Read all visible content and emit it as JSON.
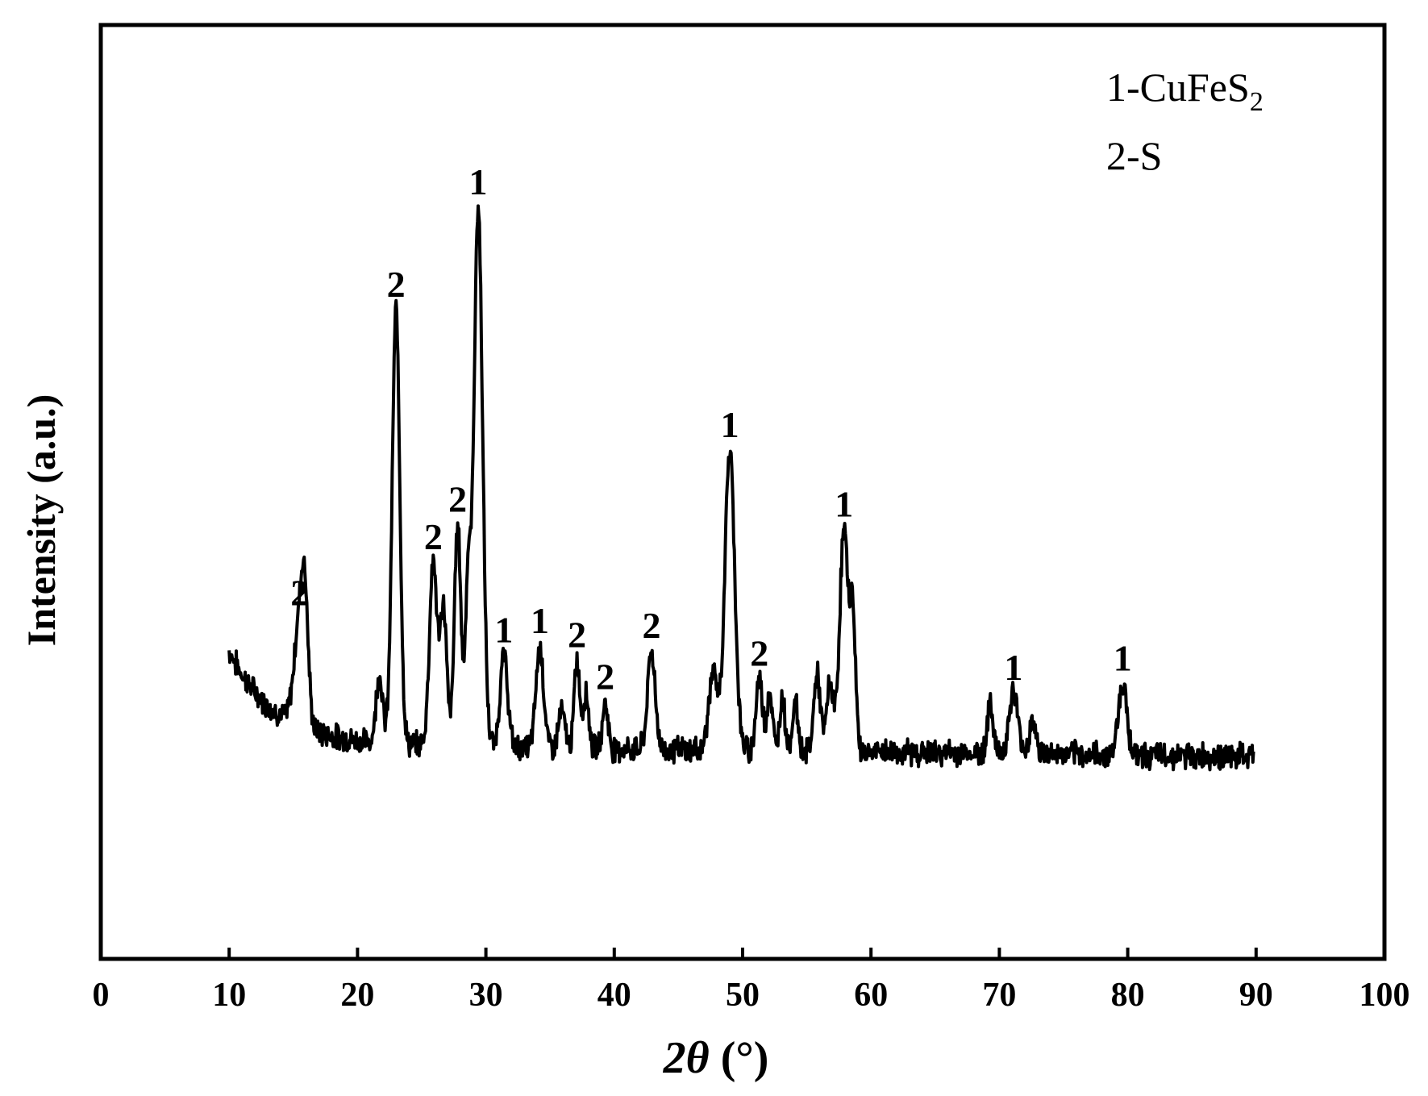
{
  "chart_data": {
    "type": "line",
    "title": "",
    "xlabel": "2θ (°)",
    "xlabel_parts": {
      "var": "2θ",
      "unit": " (°)"
    },
    "ylabel": "Intensity (a.u.)",
    "xlim": [
      0,
      100
    ],
    "ylim": [
      0,
      100
    ],
    "x_ticks": [
      0,
      10,
      20,
      30,
      40,
      50,
      60,
      70,
      80,
      90,
      100
    ],
    "x_tick_labels": [
      "0",
      "10",
      "20",
      "30",
      "40",
      "50",
      "60",
      "70",
      "80",
      "90",
      "100"
    ],
    "y_ticks_shown": false,
    "grid": false,
    "legend": {
      "placement": "top-right",
      "entries": [
        {
          "base": "1-CuFeS",
          "sub": "2"
        },
        {
          "base": "2-S",
          "sub": ""
        }
      ]
    },
    "series": [
      {
        "color": "#000000",
        "peaks": [
          [
            15.5,
            36.5,
            1.0,
            "2"
          ],
          [
            15.9,
            34.5,
            0.6,
            ""
          ],
          [
            21.7,
            30.5,
            0.6,
            ""
          ],
          [
            23.0,
            69.5,
            0.7,
            "2"
          ],
          [
            25.9,
            42.5,
            0.7,
            "2"
          ],
          [
            26.7,
            37.5,
            0.6,
            ""
          ],
          [
            27.8,
            46.5,
            0.6,
            "2"
          ],
          [
            28.6,
            39.5,
            0.5,
            ""
          ],
          [
            29.4,
            80.5,
            0.8,
            "1"
          ],
          [
            31.4,
            32.5,
            0.7,
            "1"
          ],
          [
            34.2,
            33.5,
            0.7,
            "1"
          ],
          [
            35.9,
            26.5,
            0.6,
            ""
          ],
          [
            37.1,
            32.0,
            0.5,
            "2"
          ],
          [
            37.8,
            28.5,
            0.5,
            ""
          ],
          [
            39.3,
            27.5,
            0.5,
            "2"
          ],
          [
            42.9,
            33.0,
            0.7,
            "2"
          ],
          [
            47.7,
            30.5,
            0.8,
            ""
          ],
          [
            49.0,
            54.5,
            0.9,
            "1"
          ],
          [
            51.3,
            30.0,
            0.6,
            "2"
          ],
          [
            52.1,
            28.5,
            0.5,
            ""
          ],
          [
            53.1,
            28.0,
            0.5,
            ""
          ],
          [
            54.1,
            27.5,
            0.5,
            ""
          ],
          [
            55.8,
            30.5,
            0.6,
            ""
          ],
          [
            56.8,
            29.5,
            0.6,
            ""
          ],
          [
            57.9,
            46.0,
            0.8,
            "1"
          ],
          [
            58.6,
            35.5,
            0.5,
            ""
          ],
          [
            69.3,
            27.0,
            0.6,
            ""
          ],
          [
            71.1,
            28.5,
            0.8,
            "1"
          ],
          [
            72.6,
            25.5,
            0.6,
            ""
          ],
          [
            79.6,
            29.5,
            0.8,
            "1"
          ]
        ]
      }
    ]
  }
}
